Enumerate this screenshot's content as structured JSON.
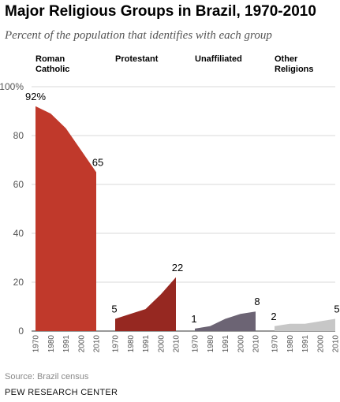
{
  "title": "Major Religious Groups in Brazil, 1970-2010",
  "subtitle": "Percent of the population that identifies with each group",
  "source": "Source: Brazil census",
  "brand": "PEW RESEARCH CENTER",
  "chart_data": {
    "type": "area",
    "title": "Major Religious Groups in Brazil, 1970-2010",
    "subtitle": "Percent of the population that identifies with each group",
    "x": [
      "1970",
      "1980",
      "1991",
      "2000",
      "2010"
    ],
    "ylim": [
      0,
      100
    ],
    "yticks": [
      "0",
      "20",
      "40",
      "60",
      "80",
      "100%"
    ],
    "grid": true,
    "panels": [
      {
        "name": "Roman Catholic",
        "header": [
          "Roman",
          "Catholic"
        ],
        "values": [
          92,
          89,
          83,
          74,
          65
        ],
        "color": "#c0392b",
        "start_label": "92%",
        "end_label": "65"
      },
      {
        "name": "Protestant",
        "header": [
          "Protestant"
        ],
        "values": [
          5,
          7,
          9,
          15,
          22
        ],
        "color": "#962821",
        "start_label": "5",
        "end_label": "22"
      },
      {
        "name": "Unaffiliated",
        "header": [
          "Unaffiliated"
        ],
        "values": [
          1,
          2,
          5,
          7,
          8
        ],
        "color": "#6c6474",
        "start_label": "1",
        "end_label": "8"
      },
      {
        "name": "Other Religions",
        "header": [
          "Other",
          "Religions"
        ],
        "values": [
          2,
          3,
          3,
          4,
          5
        ],
        "color": "#c7c7c7",
        "start_label": "2",
        "end_label": "5"
      }
    ]
  }
}
